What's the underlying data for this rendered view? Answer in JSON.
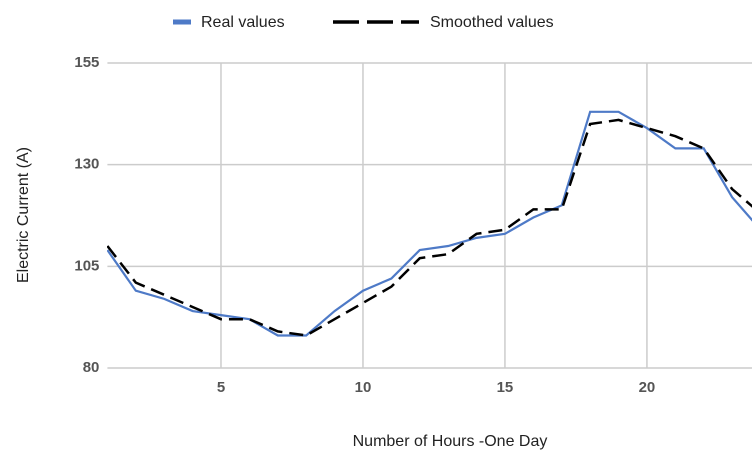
{
  "chart_data": {
    "type": "line",
    "x_label": "Number of Hours -One Day",
    "y_label": "Electric Current (A)",
    "x": [
      1,
      2,
      3,
      4,
      5,
      6,
      7,
      8,
      9,
      10,
      11,
      12,
      13,
      14,
      15,
      16,
      17,
      18,
      19,
      20,
      21,
      22,
      23,
      24
    ],
    "series": [
      {
        "name": "Real values",
        "color": "#4e7ac7",
        "dash": "solid",
        "values": [
          109,
          99,
          97,
          94,
          93,
          92,
          88,
          88,
          94,
          99,
          102,
          109,
          110,
          112,
          113,
          117,
          120,
          143,
          143,
          139,
          134,
          134,
          122,
          114
        ]
      },
      {
        "name": "Smoothed values",
        "color": "#000000",
        "dash": "dashed",
        "values": [
          110,
          101,
          98,
          95,
          92,
          92,
          89,
          88,
          92,
          96,
          100,
          107,
          108,
          113,
          114,
          119,
          119,
          140,
          141,
          139,
          137,
          134,
          124,
          118
        ]
      }
    ],
    "xlim": [
      1,
      23.7
    ],
    "ylim": [
      80,
      155
    ],
    "xticks": [
      5,
      10,
      15,
      20
    ],
    "yticks": [
      80,
      105,
      130,
      155
    ],
    "grid": true,
    "legend": "top"
  }
}
